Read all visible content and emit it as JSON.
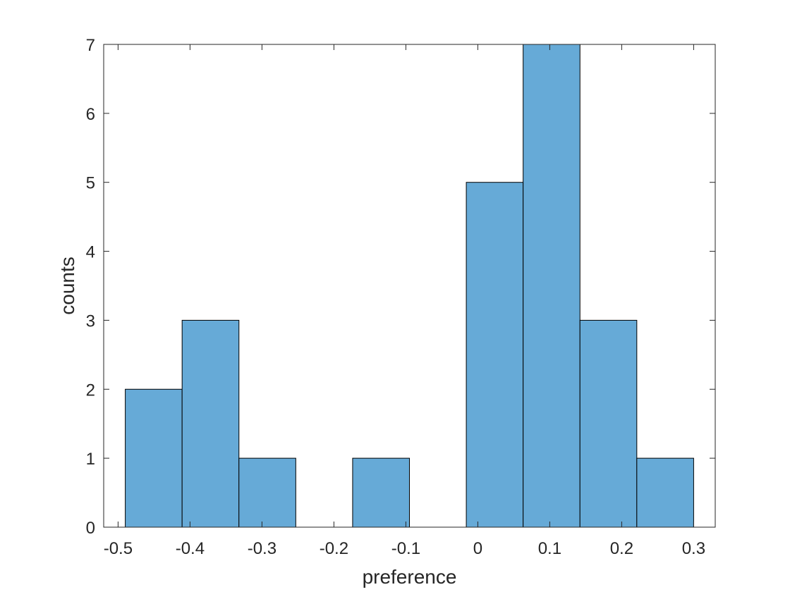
{
  "chart_data": {
    "type": "bar",
    "subtype": "histogram",
    "title": "",
    "xlabel": "preference",
    "ylabel": "counts",
    "bin_edges": [
      -0.49,
      -0.411,
      -0.332,
      -0.253,
      -0.174,
      -0.095,
      -0.016,
      0.063,
      0.142,
      0.221,
      0.3
    ],
    "values": [
      2,
      3,
      1,
      0,
      1,
      0,
      5,
      7,
      3,
      1
    ],
    "xlim": [
      -0.52,
      0.33
    ],
    "ylim": [
      0,
      7
    ],
    "xticks": [
      -0.5,
      -0.4,
      -0.3,
      -0.2,
      -0.1,
      0,
      0.1,
      0.2,
      0.3
    ],
    "xtick_labels": [
      "-0.5",
      "-0.4",
      "-0.3",
      "-0.2",
      "-0.1",
      "0",
      "0.1",
      "0.2",
      "0.3"
    ],
    "yticks": [
      0,
      1,
      2,
      3,
      4,
      5,
      6,
      7
    ],
    "ytick_labels": [
      "0",
      "1",
      "2",
      "3",
      "4",
      "5",
      "6",
      "7"
    ],
    "grid": false,
    "legend": "none",
    "bar_color": "#66aad7",
    "edge_color": "#000000"
  }
}
